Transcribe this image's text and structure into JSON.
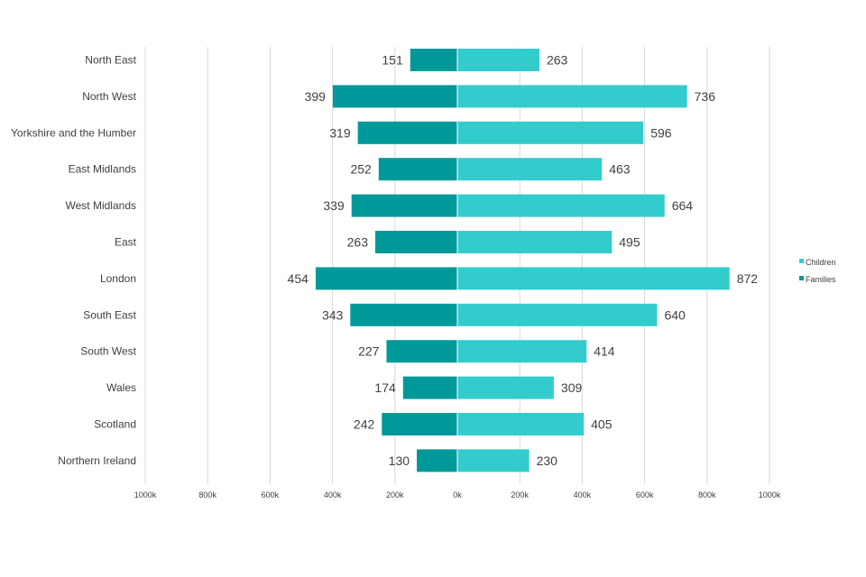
{
  "chart_data": {
    "type": "bar",
    "orientation": "horizontal",
    "layout": "diverging",
    "title": "",
    "xlabel": "",
    "ylabel": "",
    "xlim": [
      -1000,
      1000
    ],
    "categories": [
      "North East",
      "North West",
      "Yorkshire and the Humber",
      "East Midlands",
      "West Midlands",
      "East ",
      "London",
      "South East",
      "South West",
      "Wales",
      "Scotland",
      "Northern Ireland"
    ],
    "series": [
      {
        "name": "Families",
        "side": "left",
        "color": "#009999",
        "values": [
          151,
          399,
          319,
          252,
          339,
          263,
          454,
          343,
          227,
          174,
          242,
          130
        ]
      },
      {
        "name": "Children",
        "side": "right",
        "color": "#33cccc",
        "values": [
          263,
          736,
          596,
          463,
          664,
          495,
          872,
          640,
          414,
          309,
          405,
          230
        ]
      }
    ],
    "ticks": [
      {
        "value": -1000,
        "label": "1000k"
      },
      {
        "value": -800,
        "label": "800k"
      },
      {
        "value": -600,
        "label": "600k"
      },
      {
        "value": -400,
        "label": "400k"
      },
      {
        "value": -200,
        "label": "200k"
      },
      {
        "value": 0,
        "label": "0k"
      },
      {
        "value": 200,
        "label": "200k"
      },
      {
        "value": 400,
        "label": "400k"
      },
      {
        "value": 600,
        "label": "600k"
      },
      {
        "value": 800,
        "label": "800k"
      },
      {
        "value": 1000,
        "label": "1000k"
      }
    ],
    "grid": true,
    "legend": {
      "position": "right",
      "entries": [
        "Children",
        "Families"
      ]
    }
  }
}
